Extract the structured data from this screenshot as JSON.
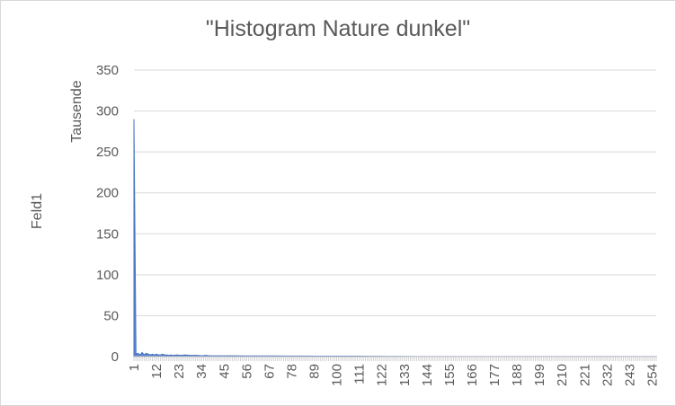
{
  "chart_data": {
    "type": "area",
    "title": "\"Histogram Nature dunkel\"",
    "ylabel": "Feld1",
    "y_units_label": "Tausende",
    "xlabel": "",
    "ylim": [
      0,
      350
    ],
    "yticks": [
      "0",
      "50",
      "100",
      "150",
      "200",
      "250",
      "300",
      "350"
    ],
    "xticks": [
      "1",
      "12",
      "23",
      "34",
      "45",
      "56",
      "67",
      "78",
      "89",
      "100",
      "111",
      "122",
      "133",
      "144",
      "155",
      "166",
      "177",
      "188",
      "199",
      "210",
      "221",
      "232",
      "243",
      "254"
    ],
    "grid": true,
    "legend": "none",
    "series": [
      {
        "color": "#4472c4",
        "x": [
          1,
          2,
          3,
          4,
          5,
          6,
          7,
          8,
          9,
          10,
          11,
          12,
          13,
          14,
          15,
          16,
          17,
          18,
          19,
          20,
          22,
          24,
          26,
          28,
          30,
          32,
          34,
          36,
          38,
          40,
          45,
          50,
          55,
          60,
          65,
          70,
          75,
          80,
          85,
          90,
          95,
          100,
          105,
          110,
          115,
          120,
          125,
          130,
          140,
          150,
          160,
          180,
          200,
          220,
          240,
          256
        ],
        "values": [
          290,
          3,
          4,
          2,
          5,
          2,
          4,
          3,
          2,
          3,
          2,
          3,
          2,
          2,
          3,
          2,
          2,
          1.5,
          2,
          1.5,
          2,
          1.5,
          2,
          1.5,
          1.5,
          1.5,
          1,
          1.5,
          1,
          1,
          1,
          1,
          0.8,
          0.8,
          0.8,
          0.8,
          0.7,
          0.7,
          0.7,
          0.6,
          0.6,
          0.6,
          0.5,
          0.5,
          0.4,
          0.4,
          0.3,
          0.3,
          0.2,
          0.2,
          0.1,
          0.1,
          0.1,
          0.1,
          0.1,
          0.1
        ]
      }
    ]
  }
}
